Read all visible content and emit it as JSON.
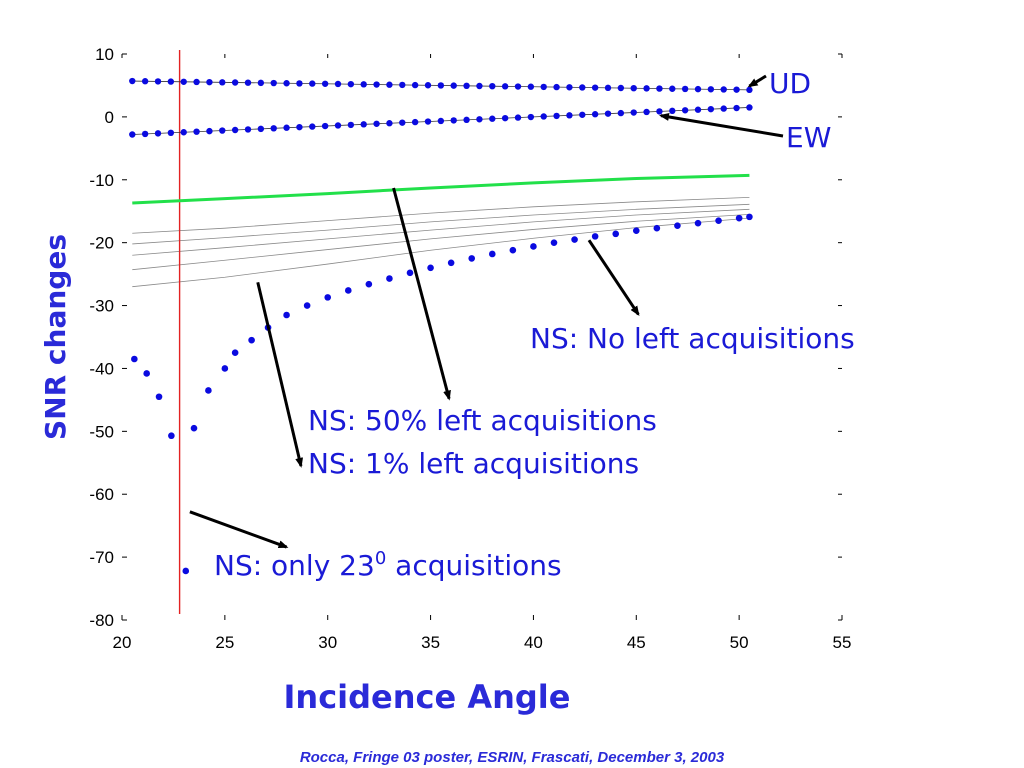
{
  "chart_data": {
    "type": "scatter",
    "title": "",
    "xlabel": "Incidence Angle",
    "ylabel": "SNR changes",
    "xlim": [
      20,
      55
    ],
    "ylim": [
      -80,
      10
    ],
    "xticks": [
      20,
      25,
      30,
      35,
      40,
      45,
      50,
      55
    ],
    "yticks": [
      10,
      0,
      -10,
      -20,
      -30,
      -40,
      -50,
      -60,
      -70,
      -80
    ],
    "grid": false,
    "cutoff_line": {
      "x": 22.8,
      "color": "#e32222"
    },
    "series": [
      {
        "name": "UD",
        "style": "dots",
        "color": "#0a0ae0",
        "x": [
          20.5,
          50.5
        ],
        "y": [
          5.7,
          4.3
        ]
      },
      {
        "name": "EW",
        "style": "dots",
        "color": "#0a0ae0",
        "x": [
          20.5,
          50.5
        ],
        "y": [
          -2.8,
          1.5
        ]
      },
      {
        "name": "NS: 50% left acquisitions",
        "style": "line",
        "color": "#22e04a",
        "x": [
          20.5,
          25,
          30,
          35,
          40,
          45,
          50.5
        ],
        "y": [
          -13.7,
          -13,
          -12.2,
          -11.3,
          -10.5,
          -9.8,
          -9.3
        ]
      },
      {
        "name": "NS: No left acquisitions",
        "style": "dots",
        "color": "#0a0ae0",
        "x": [
          23.5,
          24.2,
          25,
          25.5,
          26.3,
          27.1,
          28,
          29,
          30,
          31,
          32,
          33,
          34,
          35,
          36,
          37,
          38,
          39,
          40,
          41,
          42,
          43,
          44,
          45,
          46,
          47,
          48,
          49,
          50,
          50.5
        ],
        "y": [
          -49.5,
          -43.5,
          -40,
          -37.5,
          -35.5,
          -33.5,
          -31.5,
          -30,
          -28.7,
          -27.6,
          -26.6,
          -25.7,
          -24.8,
          -24,
          -23.2,
          -22.5,
          -21.8,
          -21.2,
          -20.6,
          -20,
          -19.5,
          -19,
          -18.6,
          -18.1,
          -17.7,
          -17.3,
          -16.9,
          -16.5,
          -16.1,
          -15.9
        ]
      },
      {
        "name": "NS: only 23⁰ acquisitions",
        "style": "dots",
        "color": "#0a0ae0",
        "x": [
          20.6,
          21.2,
          21.8,
          22.4,
          23.1
        ],
        "y": [
          -38.5,
          -40.8,
          -44.5,
          -50.7,
          -72.2
        ]
      }
    ],
    "intermediate_curves": {
      "x": [
        20.5,
        25,
        30,
        35,
        40,
        45,
        50.5
      ],
      "curves": [
        [
          -18.5,
          -17.7,
          -16.5,
          -15.3,
          -14.3,
          -13.5,
          -12.8
        ],
        [
          -20.2,
          -19.2,
          -18,
          -16.7,
          -15.6,
          -14.7,
          -13.9
        ],
        [
          -22,
          -20.8,
          -19.4,
          -18,
          -16.7,
          -15.6,
          -14.7
        ],
        [
          -24.3,
          -22.8,
          -21.1,
          -19.4,
          -17.9,
          -16.6,
          -15.5
        ],
        [
          -27,
          -25.5,
          -23.4,
          -21.2,
          -19.3,
          -17.6,
          -16.1
        ]
      ]
    },
    "annotations": [
      {
        "text": "UD",
        "tx": 769,
        "ty": 93,
        "x1": 766,
        "y1": 76,
        "x2": 50.5,
        "y2": 4.9
      },
      {
        "text": "EW",
        "tx": 786,
        "ty": 147,
        "x1": 783,
        "y1": 136,
        "x2": 46.2,
        "y2": 0.2
      },
      {
        "text": "NS: No left acquisitions",
        "tx": 530,
        "ty": 348,
        "x1": 42.7,
        "y1": -19.6,
        "x2": 45.1,
        "y2": -31.4
      },
      {
        "text": "NS: 50% left acquisitions",
        "tx": 308,
        "ty": 430,
        "x1": 33.2,
        "y1": -11.3,
        "x2": 35.9,
        "y2": -44.8
      },
      {
        "text": "NS: 1% left acquisitions",
        "tx": 308,
        "ty": 473,
        "x1": 26.6,
        "y1": -26.3,
        "x2": 28.7,
        "y2": -55.5
      }
    ],
    "special_annotation": {
      "prefix": "NS: only 23",
      "sup": "0",
      "suffix": " acquisitions",
      "tx": 214,
      "ty": 575,
      "x1": 23.3,
      "y1": -62.8,
      "x2": 28,
      "y2": -68.4
    }
  },
  "footer": "Rocca, Fringe 03 poster,  ESRIN, Frascati, December 3, 2003"
}
